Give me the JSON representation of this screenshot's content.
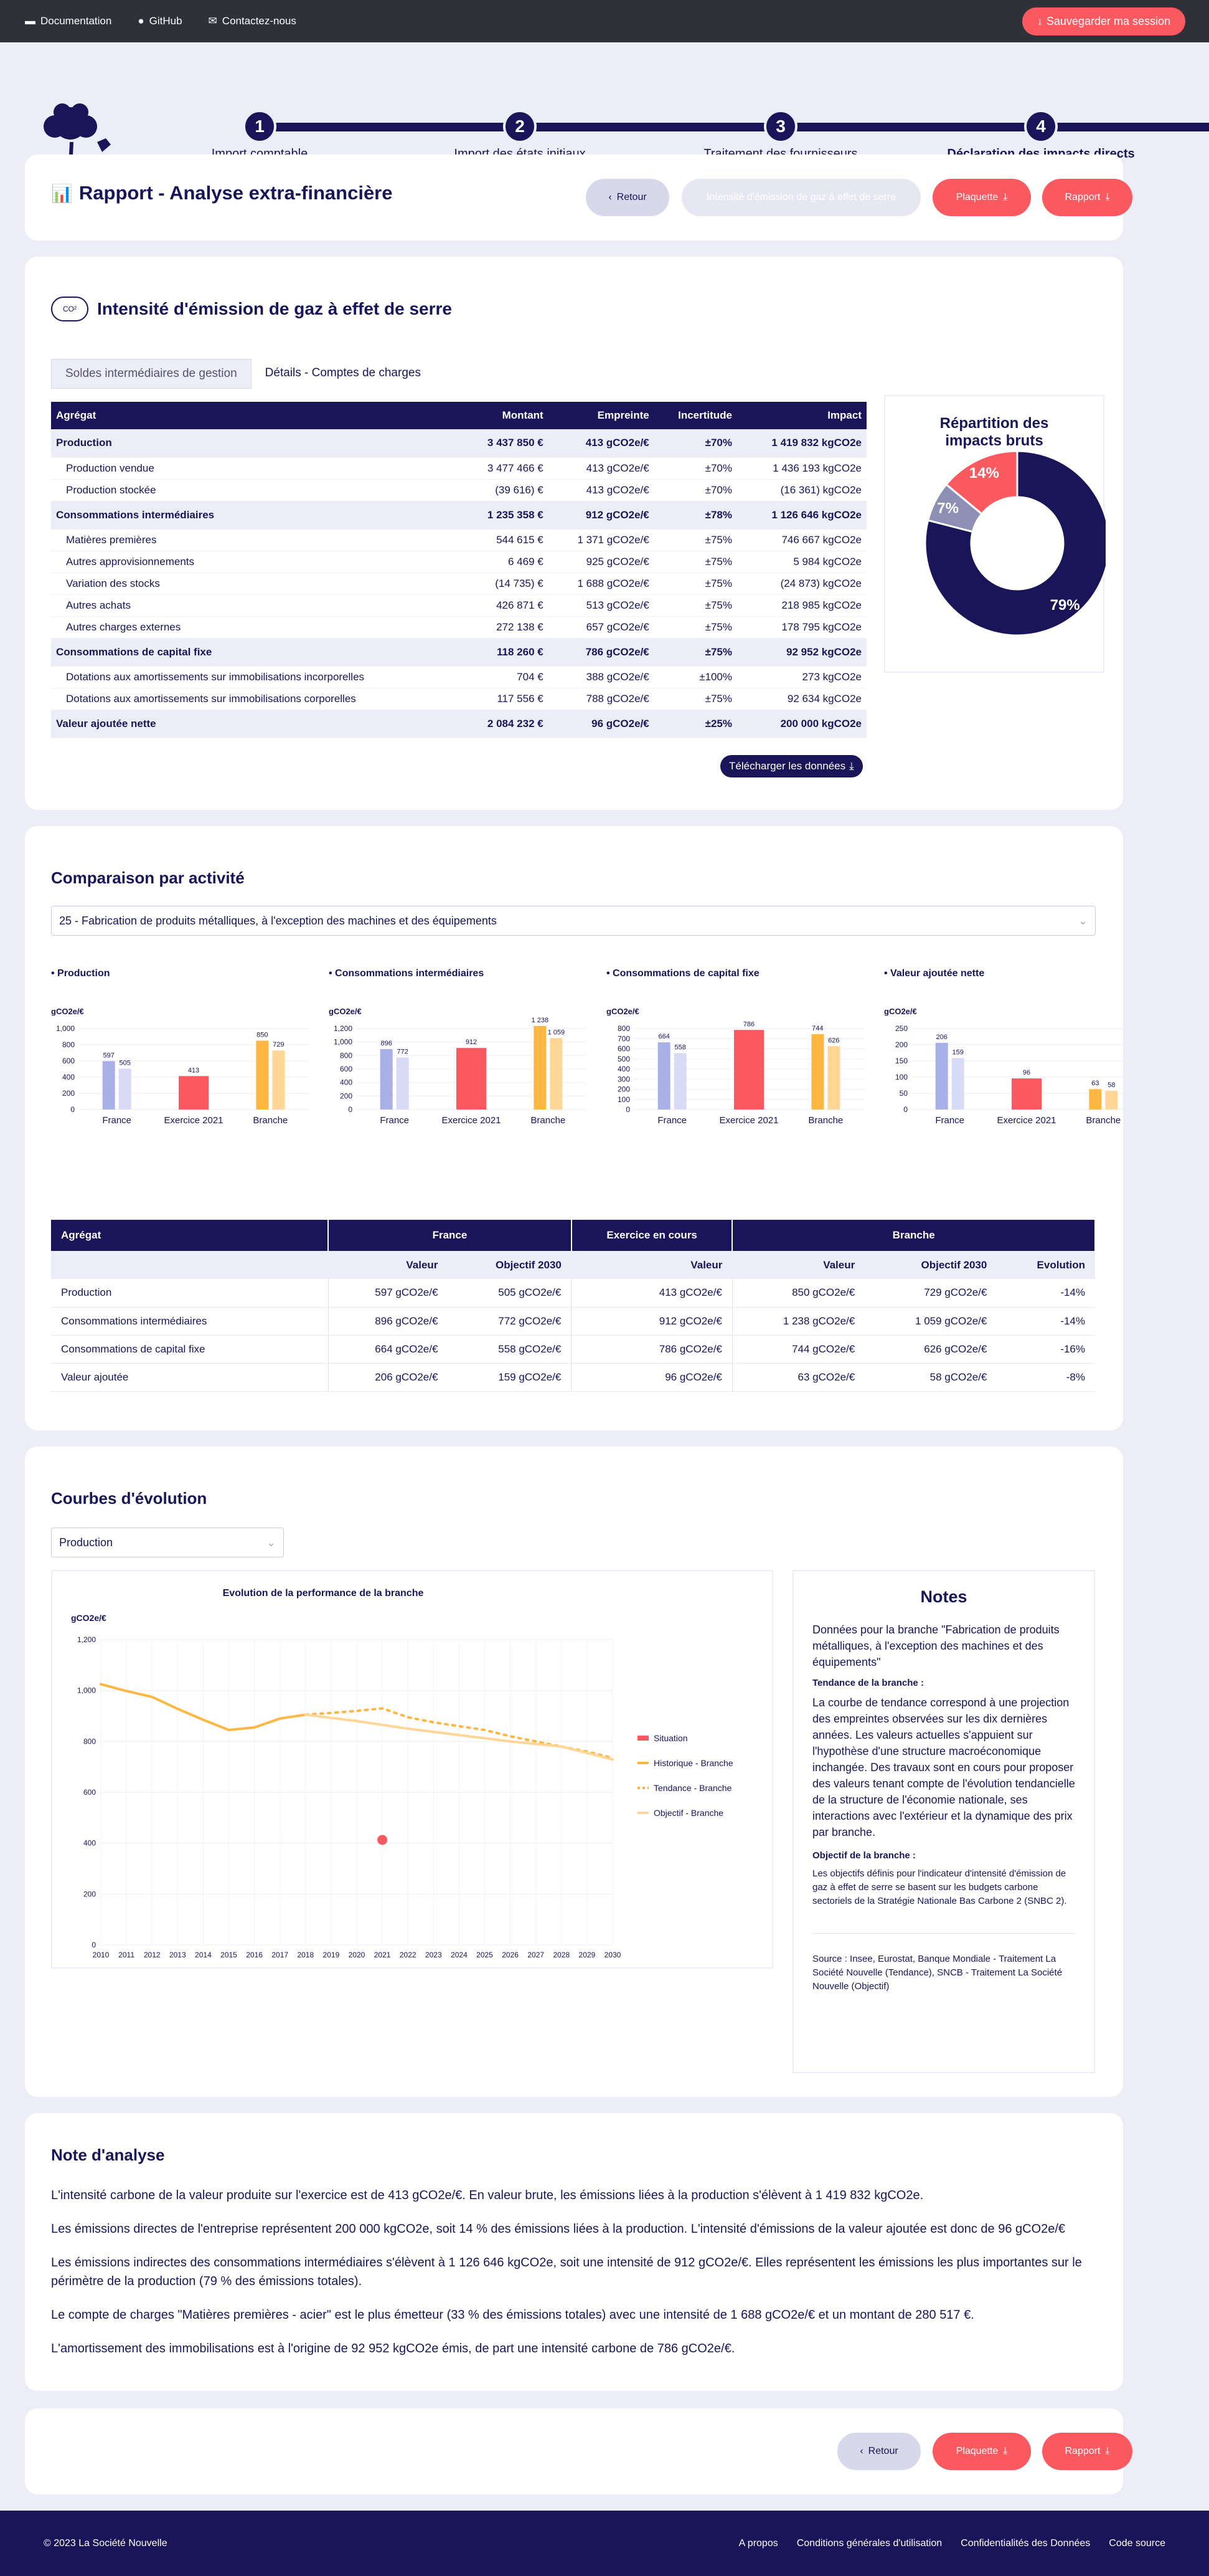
{
  "topbar": {
    "links": [
      {
        "label": "Documentation",
        "icon": "book-icon"
      },
      {
        "label": "GitHub",
        "icon": "github-icon"
      },
      {
        "label": "Contactez-nous",
        "icon": "mail-icon"
      }
    ],
    "save_label": "Sauvegarder ma session"
  },
  "steps": [
    {
      "num": "1",
      "label": "Import comptable"
    },
    {
      "num": "2",
      "label": "Import des états initiaux"
    },
    {
      "num": "3",
      "label": "Traitement des fournisseurs"
    },
    {
      "num": "4",
      "label": "Déclaration des impacts directs"
    }
  ],
  "report_header": {
    "title": "Rapport - Analyse extra-financière",
    "back_label": "Retour",
    "indicator_label": "Intensité d'émission de gaz à effet de serre",
    "plaquette_label": "Plaquette",
    "rapport_label": "Rapport"
  },
  "ghg": {
    "title": "Intensité d'émission de gaz à effet de serre",
    "icon_text": "CO²",
    "tabs": [
      "Soldes intermédiaires de gestion",
      "Détails - Comptes de charges"
    ],
    "columns": [
      "Agrégat",
      "Montant",
      "Empreinte",
      "Incertitude",
      "Impact"
    ],
    "rows": [
      {
        "agg": true,
        "cells": [
          "Production",
          "3 437 850 €",
          "413 gCO2e/€",
          "±70%",
          "1 419 832 kgCO2e"
        ]
      },
      {
        "agg": false,
        "cells": [
          "Production vendue",
          "3 477 466 €",
          "413 gCO2e/€",
          "±70%",
          "1 436 193 kgCO2e"
        ]
      },
      {
        "agg": false,
        "cells": [
          "Production stockée",
          "(39 616) €",
          "413 gCO2e/€",
          "±70%",
          "(16 361) kgCO2e"
        ]
      },
      {
        "agg": true,
        "cells": [
          "Consommations intermédiaires",
          "1 235 358 €",
          "912 gCO2e/€",
          "±78%",
          "1 126 646 kgCO2e"
        ]
      },
      {
        "agg": false,
        "cells": [
          "Matières premières",
          "544 615 €",
          "1 371 gCO2e/€",
          "±75%",
          "746 667 kgCO2e"
        ]
      },
      {
        "agg": false,
        "cells": [
          "Autres approvisionnements",
          "6 469 €",
          "925 gCO2e/€",
          "±75%",
          "5 984 kgCO2e"
        ]
      },
      {
        "agg": false,
        "cells": [
          "Variation des stocks",
          "(14 735) €",
          "1 688 gCO2e/€",
          "±75%",
          "(24 873) kgCO2e"
        ]
      },
      {
        "agg": false,
        "cells": [
          "Autres achats",
          "426 871 €",
          "513 gCO2e/€",
          "±75%",
          "218 985 kgCO2e"
        ]
      },
      {
        "agg": false,
        "cells": [
          "Autres charges externes",
          "272 138 €",
          "657 gCO2e/€",
          "±75%",
          "178 795 kgCO2e"
        ]
      },
      {
        "agg": true,
        "cells": [
          "Consommations de capital fixe",
          "118 260 €",
          "786 gCO2e/€",
          "±75%",
          "92 952 kgCO2e"
        ]
      },
      {
        "agg": false,
        "cells": [
          "Dotations aux amortissements sur immobilisations incorporelles",
          "704 €",
          "388 gCO2e/€",
          "±100%",
          "273 kgCO2e"
        ]
      },
      {
        "agg": false,
        "cells": [
          "Dotations aux amortissements sur immobilisations corporelles",
          "117 556 €",
          "788 gCO2e/€",
          "±75%",
          "92 634 kgCO2e"
        ]
      },
      {
        "agg": true,
        "cells": [
          "Valeur ajoutée nette",
          "2 084 232 €",
          "96 gCO2e/€",
          "±25%",
          "200 000 kgCO2e"
        ]
      }
    ],
    "download_label": "Télécharger les données",
    "pie_title": "Répartition des impacts bruts",
    "pie": [
      {
        "label": "79%",
        "value": 79,
        "color": "#191558"
      },
      {
        "label": "7%",
        "value": 7,
        "color": "#8d8fb5"
      },
      {
        "label": "14%",
        "value": 14,
        "color": "#fa595f"
      }
    ]
  },
  "comparison": {
    "title": "Comparaison par activité",
    "select_value": "25 - Fabrication de produits métalliques, à l'exception des machines et des équipements",
    "unit": "gCO2e/€",
    "categories": [
      "France",
      "Exercice 2021",
      "Branche"
    ],
    "charts": [
      {
        "title": "• Production",
        "ticks": [
          "1,000",
          "800",
          "600",
          "400",
          "200",
          "0"
        ],
        "max": 1000,
        "values": [
          597,
          505,
          413,
          850,
          729
        ],
        "labels": [
          "597",
          "505",
          "413",
          "850",
          "729"
        ]
      },
      {
        "title": "• Consommations intermédiaires",
        "ticks": [
          "1,200",
          "1,000",
          "800",
          "600",
          "400",
          "200",
          "0"
        ],
        "max": 1200,
        "values": [
          896,
          772,
          912,
          1238,
          1059
        ],
        "labels": [
          "896",
          "772",
          "912",
          "1 238",
          "1 059"
        ]
      },
      {
        "title": "• Consommations de capital fixe",
        "ticks": [
          "800",
          "700",
          "600",
          "500",
          "400",
          "300",
          "200",
          "100",
          "0"
        ],
        "max": 800,
        "values": [
          664,
          558,
          786,
          744,
          626
        ],
        "labels": [
          "664",
          "558",
          "786",
          "744",
          "626"
        ]
      },
      {
        "title": "• Valeur ajoutée nette",
        "ticks": [
          "250",
          "200",
          "150",
          "100",
          "50",
          "0"
        ],
        "max": 250,
        "values": [
          206,
          159,
          96,
          63,
          58
        ],
        "labels": [
          "206",
          "159",
          "96",
          "63",
          "58"
        ]
      }
    ],
    "table": {
      "groups": [
        "Agrégat",
        "France",
        "Exercice en cours",
        "Branche"
      ],
      "subheaders": [
        "",
        "Valeur",
        "Objectif 2030",
        "Valeur",
        "Valeur",
        "Objectif 2030",
        "Evolution"
      ],
      "rows": [
        [
          "Production",
          "597 gCO2e/€",
          "505 gCO2e/€",
          "413 gCO2e/€",
          "850 gCO2e/€",
          "729 gCO2e/€",
          "-14%"
        ],
        [
          "Consommations intermédiaires",
          "896 gCO2e/€",
          "772 gCO2e/€",
          "912 gCO2e/€",
          "1 238 gCO2e/€",
          "1 059 gCO2e/€",
          "-14%"
        ],
        [
          "Consommations de capital fixe",
          "664 gCO2e/€",
          "558 gCO2e/€",
          "786 gCO2e/€",
          "744 gCO2e/€",
          "626 gCO2e/€",
          "-16%"
        ],
        [
          "Valeur ajoutée",
          "206 gCO2e/€",
          "159 gCO2e/€",
          "96 gCO2e/€",
          "63 gCO2e/€",
          "58 gCO2e/€",
          "-8%"
        ]
      ]
    }
  },
  "evolution": {
    "title": "Courbes d'évolution",
    "select_value": "Production",
    "chart_title": "Evolution de la performance de la branche",
    "unit": "gCO2e/€",
    "legend": [
      "Situation",
      "Historique - Branche",
      "Tendance - Branche",
      "Objectif - Branche"
    ],
    "notes_title": "Notes",
    "notes_intro": "Données pour la branche \"Fabrication de produits métalliques, à l'exception des machines et des équipements\"",
    "trend_heading": "Tendance de la branche :",
    "trend_text": "La courbe de tendance correspond à une projection des empreintes observées sur les dix dernières années. Les valeurs actuelles s'appuient sur l'hypothèse d'une structure macroéconomique inchangée. Des travaux sont en cours pour proposer des valeurs tenant compte de l'évolution tendancielle de la structure de l'économie nationale, ses interactions avec l'extérieur et la dynamique des prix par branche.",
    "target_heading": "Objectif de la branche :",
    "target_text": "Les objectifs définis pour l'indicateur d'intensité d'émission de gaz à effet de serre se basent sur les budgets carbone sectoriels de la Stratégie Nationale Bas Carbone 2 (SNBC 2).",
    "source_text": "Source : Insee, Eurostat, Banque Mondiale - Traitement La Société Nouvelle (Tendance), SNCB - Traitement La Société Nouvelle (Objectif)"
  },
  "chart_data": {
    "type": "line",
    "title": "Evolution de la performance de la branche",
    "ylabel": "gCO2e/€",
    "ylim": [
      0,
      1200
    ],
    "x": [
      2010,
      2011,
      2012,
      2013,
      2014,
      2015,
      2016,
      2017,
      2018,
      2019,
      2020,
      2021,
      2022,
      2023,
      2024,
      2025,
      2026,
      2027,
      2028,
      2029,
      2030
    ],
    "series": [
      {
        "name": "Situation",
        "color": "#fa595f",
        "points": [
          [
            2021,
            413
          ]
        ]
      },
      {
        "name": "Historique - Branche",
        "color": "#ffb642",
        "points": [
          [
            2010,
            1025
          ],
          [
            2011,
            998
          ],
          [
            2012,
            975
          ],
          [
            2013,
            928
          ],
          [
            2014,
            885
          ],
          [
            2015,
            845
          ],
          [
            2016,
            855
          ],
          [
            2017,
            890
          ],
          [
            2018,
            905
          ]
        ]
      },
      {
        "name": "Tendance - Branche",
        "color": "#ffb642",
        "points": [
          [
            2018,
            905
          ],
          [
            2019,
            912
          ],
          [
            2020,
            920
          ],
          [
            2021,
            930
          ],
          [
            2022,
            895
          ],
          [
            2023,
            875
          ],
          [
            2024,
            860
          ],
          [
            2025,
            845
          ],
          [
            2026,
            820
          ],
          [
            2027,
            800
          ],
          [
            2028,
            780
          ],
          [
            2029,
            760
          ],
          [
            2030,
            735
          ]
        ]
      },
      {
        "name": "Objectif - Branche",
        "color": "#ffd696",
        "points": [
          [
            2018,
            905
          ],
          [
            2020,
            880
          ],
          [
            2022,
            850
          ],
          [
            2024,
            825
          ],
          [
            2026,
            800
          ],
          [
            2028,
            780
          ],
          [
            2030,
            729
          ]
        ]
      }
    ],
    "ticks_y": [
      0,
      200,
      400,
      600,
      800,
      1000,
      1200
    ]
  },
  "analysis": {
    "title": "Note d'analyse",
    "paragraphs": [
      "L'intensité carbone de la valeur produite sur l'exercice est de 413 gCO2e/€. En valeur brute, les émissions liées à la production s'élèvent à 1 419 832 kgCO2e.",
      "Les émissions directes de l'entreprise représentent 200 000 kgCO2e, soit 14 % des émissions liées à la production. L'intensité d'émissions de la valeur ajoutée est donc de 96 gCO2e/€",
      "Les émissions indirectes des consommations intermédiaires s'élèvent à 1 126 646 kgCO2e, soit une intensité de 912 gCO2e/€. Elles représentent les émissions les plus importantes sur le périmètre de la production (79 % des émissions totales).",
      "Le compte de charges \"Matières premières - acier\" est le plus émetteur (33 % des émissions totales) avec une intensité de 1 688 gCO2e/€ et un montant de 280 517 €.",
      "L'amortissement des immobilisations est à l'origine de 92 952 kgCO2e émis, de part une intensité carbone de 786 gCO2e/€."
    ]
  },
  "bottom_actions": {
    "back_label": "Retour",
    "plaquette_label": "Plaquette",
    "rapport_label": "Rapport"
  },
  "footer": {
    "copyright": "© 2023 La Société Nouvelle",
    "links": [
      "A propos",
      "Conditions générales d'utilisation",
      "Confidentialités des Données",
      "Code source"
    ]
  }
}
